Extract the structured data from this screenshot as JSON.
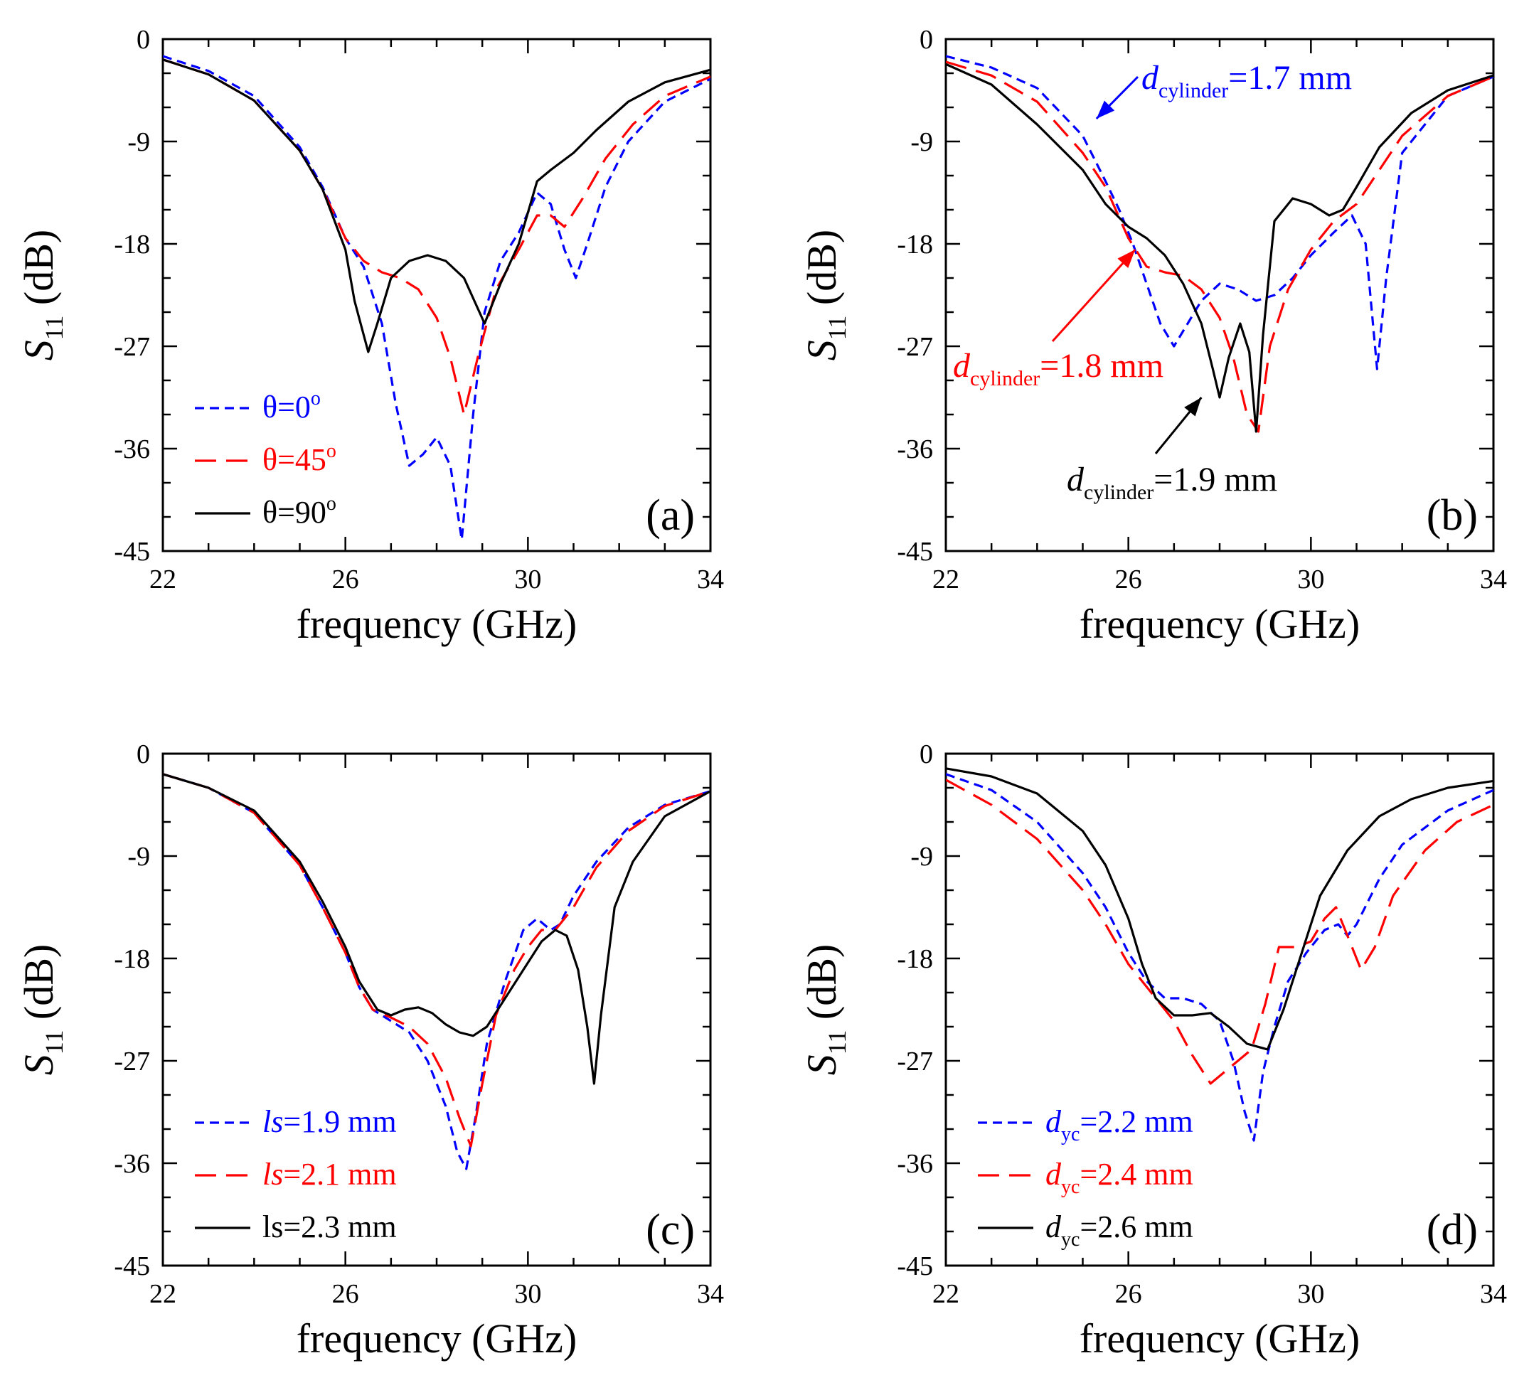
{
  "chart_data": [
    {
      "panel": "(a)",
      "type": "line",
      "xlabel": "frequency (GHz)",
      "ylabel": "S11 (dB)",
      "ylabel_main": "S",
      "ylabel_sub": "11",
      "ylabel_unit": " (dB)",
      "xlim": [
        22,
        34
      ],
      "ylim": [
        -45,
        0
      ],
      "xticks": [
        22,
        26,
        30,
        34
      ],
      "yticks": [
        0,
        -9,
        -18,
        -27,
        -36,
        -45
      ],
      "legend_position": "bottom-left",
      "series": [
        {
          "name": "θ=0o",
          "legend": {
            "main": "θ=0",
            "sup": "o",
            "suffix": ""
          },
          "color": "#0000ff",
          "dash": "short",
          "x": [
            22,
            23,
            24,
            25,
            25.5,
            26,
            26.4,
            26.8,
            27.1,
            27.4,
            27.7,
            28,
            28.3,
            28.55,
            28.8,
            29.05,
            29.4,
            29.8,
            30.2,
            30.5,
            30.8,
            31.05,
            31.3,
            31.7,
            32.2,
            33,
            34
          ],
          "y": [
            -1.5,
            -2.8,
            -5,
            -9.5,
            -13,
            -17.5,
            -20,
            -25,
            -32,
            -37.5,
            -36.5,
            -35,
            -37.5,
            -44,
            -33,
            -24,
            -19.5,
            -17,
            -13.5,
            -14.5,
            -18.5,
            -21,
            -18,
            -13,
            -9,
            -5.5,
            -3.5
          ]
        },
        {
          "name": "θ=45o",
          "legend": {
            "main": "θ=45",
            "sup": "o",
            "suffix": ""
          },
          "color": "#ff0000",
          "dash": "long",
          "x": [
            22,
            23,
            24,
            25,
            25.5,
            26,
            26.4,
            26.8,
            27.2,
            27.6,
            28,
            28.3,
            28.6,
            28.9,
            29.3,
            29.8,
            30.2,
            30.5,
            30.8,
            31.2,
            31.7,
            32.3,
            33,
            34
          ],
          "y": [
            -1.8,
            -3.1,
            -5.4,
            -9.8,
            -13.2,
            -17.5,
            -19.5,
            -20.5,
            -21,
            -22,
            -24.5,
            -28,
            -33,
            -28,
            -22,
            -18.5,
            -15.5,
            -15.5,
            -16.5,
            -14,
            -10.5,
            -7.5,
            -5,
            -3.3
          ]
        },
        {
          "name": "θ=90o",
          "legend": {
            "main": "θ=90",
            "sup": "o",
            "suffix": ""
          },
          "color": "#000000",
          "dash": "solid",
          "x": [
            22,
            23,
            24,
            25,
            25.5,
            26,
            26.2,
            26.5,
            26.7,
            27,
            27.4,
            27.8,
            28.2,
            28.6,
            29.05,
            29.4,
            29.8,
            30.2,
            30.5,
            31,
            31.5,
            32.2,
            33,
            34
          ],
          "y": [
            -1.8,
            -3.1,
            -5.4,
            -9.8,
            -13.2,
            -18.5,
            -23,
            -27.5,
            -25,
            -21,
            -19.5,
            -19,
            -19.5,
            -21,
            -25,
            -21.5,
            -18,
            -12.5,
            -11.5,
            -10,
            -8,
            -5.5,
            -3.8,
            -2.7
          ]
        }
      ]
    },
    {
      "panel": "(b)",
      "type": "line",
      "xlabel": "frequency (GHz)",
      "ylabel": "S11 (dB)",
      "ylabel_main": "S",
      "ylabel_sub": "11",
      "ylabel_unit": " (dB)",
      "xlim": [
        22,
        34
      ],
      "ylim": [
        -45,
        0
      ],
      "xticks": [
        22,
        26,
        30,
        34
      ],
      "yticks": [
        0,
        -9,
        -18,
        -27,
        -36,
        -45
      ],
      "annotations": [
        {
          "main": "d",
          "sub": "cylinder",
          "suffix": "=1.7 mm",
          "color": "#0000ff",
          "arrow_to": [
            25.3,
            -7
          ]
        },
        {
          "main": "d",
          "sub": "cylinder",
          "suffix": "=1.8 mm",
          "color": "#ff0000",
          "arrow_to": [
            26.15,
            -18.5
          ]
        },
        {
          "main": "d",
          "sub": "cylinder",
          "suffix": "=1.9 mm",
          "color": "#000000",
          "arrow_to": [
            27.6,
            -31.5
          ]
        }
      ],
      "series": [
        {
          "name": "dcylinder=1.7 mm",
          "color": "#0000ff",
          "dash": "short",
          "x": [
            22,
            23,
            24,
            25,
            25.5,
            25.8,
            26.1,
            26.4,
            26.7,
            27,
            27.3,
            27.6,
            28,
            28.4,
            28.8,
            29.2,
            29.6,
            30,
            30.5,
            30.9,
            31.2,
            31.45,
            31.65,
            32,
            33,
            34
          ],
          "y": [
            -1.5,
            -2.5,
            -4.3,
            -8.5,
            -12.5,
            -15,
            -18,
            -21.5,
            -25,
            -27,
            -25,
            -23,
            -21.5,
            -22,
            -23,
            -22.5,
            -21,
            -19,
            -17,
            -15.5,
            -18,
            -29,
            -21,
            -10,
            -5,
            -3.3
          ]
        },
        {
          "name": "dcylinder=1.8 mm",
          "color": "#ff0000",
          "dash": "long",
          "x": [
            22,
            23,
            24,
            25,
            25.5,
            26,
            26.4,
            26.8,
            27.2,
            27.6,
            28,
            28.3,
            28.6,
            28.85,
            29.1,
            29.5,
            30,
            30.5,
            31,
            31.5,
            32,
            33,
            34
          ],
          "y": [
            -2,
            -3.2,
            -5.5,
            -10,
            -13,
            -17.5,
            -20,
            -20.5,
            -20.8,
            -22,
            -24.5,
            -28,
            -33,
            -34.5,
            -27,
            -22,
            -18.5,
            -16,
            -14.5,
            -11.5,
            -8.5,
            -5,
            -3.3
          ]
        },
        {
          "name": "dcylinder=1.9 mm",
          "color": "#000000",
          "dash": "solid",
          "x": [
            22,
            23,
            24,
            25,
            25.5,
            26,
            26.4,
            26.8,
            27.2,
            27.6,
            27.85,
            28.0,
            28.2,
            28.45,
            28.65,
            28.8,
            28.95,
            29.2,
            29.6,
            30,
            30.4,
            30.7,
            31,
            31.5,
            32.2,
            33,
            34
          ],
          "y": [
            -2.2,
            -4,
            -7.5,
            -11.5,
            -14.5,
            -16.5,
            -17.5,
            -19,
            -21.5,
            -25,
            -29,
            -31.5,
            -28,
            -25,
            -27.5,
            -34.5,
            -26,
            -16,
            -14,
            -14.5,
            -15.5,
            -15,
            -13,
            -9.5,
            -6.5,
            -4.5,
            -3.2
          ]
        }
      ]
    },
    {
      "panel": "(c)",
      "type": "line",
      "xlabel": "frequency (GHz)",
      "ylabel": "S11 (dB)",
      "ylabel_main": "S",
      "ylabel_sub": "11",
      "ylabel_unit": " (dB)",
      "xlim": [
        22,
        34
      ],
      "ylim": [
        -45,
        0
      ],
      "xticks": [
        22,
        26,
        30,
        34
      ],
      "yticks": [
        0,
        -9,
        -18,
        -27,
        -36,
        -45
      ],
      "legend_position": "bottom-left",
      "series": [
        {
          "name": "ls=1.9 mm",
          "legend": {
            "main": "ls",
            "sup": "",
            "suffix": "=1.9 mm"
          },
          "color": "#0000ff",
          "dash": "short",
          "x": [
            22,
            23,
            24,
            25,
            25.5,
            26,
            26.3,
            26.6,
            27,
            27.4,
            27.8,
            28.2,
            28.45,
            28.65,
            28.85,
            29.1,
            29.5,
            29.9,
            30.2,
            30.5,
            30.7,
            31,
            31.5,
            32.2,
            33,
            34
          ],
          "y": [
            -1.8,
            -3,
            -5.2,
            -9.8,
            -13.5,
            -17.5,
            -20.5,
            -22.5,
            -23.5,
            -24.5,
            -27,
            -31,
            -35,
            -36.5,
            -32,
            -25.5,
            -20,
            -15.5,
            -14.5,
            -15.5,
            -15,
            -12.5,
            -9.5,
            -6.5,
            -4.5,
            -3.3
          ]
        },
        {
          "name": "ls=2.1 mm",
          "legend": {
            "main": "ls",
            "sup": "",
            "suffix": "=2.1 mm"
          },
          "color": "#ff0000",
          "dash": "long",
          "x": [
            22,
            23,
            24,
            25,
            25.5,
            26,
            26.3,
            26.6,
            27,
            27.4,
            27.8,
            28.2,
            28.5,
            28.75,
            29,
            29.3,
            29.7,
            30,
            30.3,
            30.6,
            31,
            31.5,
            32.2,
            33,
            34
          ],
          "y": [
            -1.8,
            -3,
            -5.2,
            -9.8,
            -13.5,
            -17.5,
            -20.5,
            -22.5,
            -23.2,
            -24,
            -25.5,
            -28.5,
            -32,
            -34.5,
            -29,
            -23,
            -19,
            -17,
            -15.5,
            -15.5,
            -13.5,
            -10,
            -6.8,
            -4.6,
            -3.3
          ]
        },
        {
          "name": "ls=2.3 mm",
          "legend": {
            "main": "ls",
            "sup": "",
            "suffix": "=2.3 mm"
          },
          "color": "#000000",
          "dash": "solid",
          "x": [
            22,
            23,
            24,
            25,
            25.5,
            26,
            26.3,
            26.7,
            27,
            27.3,
            27.6,
            27.9,
            28.2,
            28.5,
            28.8,
            29.1,
            29.5,
            29.9,
            30.3,
            30.6,
            30.85,
            31.1,
            31.3,
            31.45,
            31.6,
            31.9,
            32.3,
            33,
            34
          ],
          "y": [
            -1.8,
            -3,
            -5,
            -9.5,
            -13,
            -17,
            -20,
            -22.5,
            -23,
            -22.5,
            -22.3,
            -22.8,
            -23.8,
            -24.5,
            -24.8,
            -24,
            -21.5,
            -19,
            -16.5,
            -15.5,
            -16,
            -19,
            -24,
            -29,
            -23,
            -13.5,
            -9.5,
            -5.5,
            -3.3
          ]
        }
      ]
    },
    {
      "panel": "(d)",
      "type": "line",
      "xlabel": "frequency (GHz)",
      "ylabel": "S11 (dB)",
      "ylabel_main": "S",
      "ylabel_sub": "11",
      "ylabel_unit": " (dB)",
      "xlim": [
        22,
        34
      ],
      "ylim": [
        -45,
        0
      ],
      "xticks": [
        22,
        26,
        30,
        34
      ],
      "yticks": [
        0,
        -9,
        -18,
        -27,
        -36,
        -45
      ],
      "legend_position": "bottom-left",
      "series": [
        {
          "name": "dyc=2.2 mm",
          "legend": {
            "main": "d",
            "sub": "yc",
            "suffix": "=2.2 mm"
          },
          "color": "#0000ff",
          "dash": "short",
          "x": [
            22,
            23,
            24,
            25,
            25.5,
            26,
            26.4,
            26.8,
            27.2,
            27.6,
            28,
            28.3,
            28.55,
            28.75,
            28.95,
            29.2,
            29.5,
            29.9,
            30.3,
            30.6,
            30.8,
            31,
            31.5,
            32,
            33,
            34
          ],
          "y": [
            -1.8,
            -3.2,
            -6,
            -10.5,
            -13.5,
            -17.5,
            -20,
            -21.5,
            -21.5,
            -22,
            -23.5,
            -27,
            -31.5,
            -34,
            -28,
            -24,
            -20,
            -17.5,
            -15.5,
            -15,
            -16,
            -15,
            -11,
            -8,
            -5,
            -3.2
          ]
        },
        {
          "name": "dyc=2.4 mm",
          "legend": {
            "main": "d",
            "sub": "yc",
            "suffix": "=2.4 mm"
          },
          "color": "#ff0000",
          "dash": "long",
          "x": [
            22,
            23,
            24,
            25,
            25.5,
            26,
            26.5,
            27,
            27.4,
            27.8,
            28.1,
            28.4,
            28.7,
            29,
            29.3,
            29.7,
            30,
            30.3,
            30.55,
            30.8,
            31.1,
            31.4,
            31.8,
            32.5,
            33.2,
            34
          ],
          "y": [
            -2.3,
            -4.5,
            -7.5,
            -12,
            -15,
            -18.5,
            -21,
            -23.5,
            -26.5,
            -29,
            -28,
            -27,
            -26,
            -22,
            -17,
            -17,
            -16.5,
            -14.5,
            -13.5,
            -16,
            -19,
            -17,
            -12.5,
            -8.5,
            -6,
            -4.5
          ]
        },
        {
          "name": "dyc=2.6 mm",
          "legend": {
            "main": "d",
            "sub": "yc",
            "suffix": "=2.6 mm"
          },
          "color": "#000000",
          "dash": "solid",
          "x": [
            22,
            23,
            24,
            25,
            25.5,
            26,
            26.3,
            26.6,
            27,
            27.4,
            27.8,
            28.2,
            28.6,
            29.05,
            29.4,
            29.8,
            30.2,
            30.8,
            31.5,
            32.2,
            33,
            34
          ],
          "y": [
            -1.3,
            -2,
            -3.5,
            -6.8,
            -9.8,
            -14.5,
            -18.5,
            -21.5,
            -23,
            -23,
            -22.8,
            -24,
            -25.5,
            -26,
            -22.5,
            -17.5,
            -12.5,
            -8.5,
            -5.5,
            -4,
            -3,
            -2.4
          ]
        }
      ]
    }
  ]
}
